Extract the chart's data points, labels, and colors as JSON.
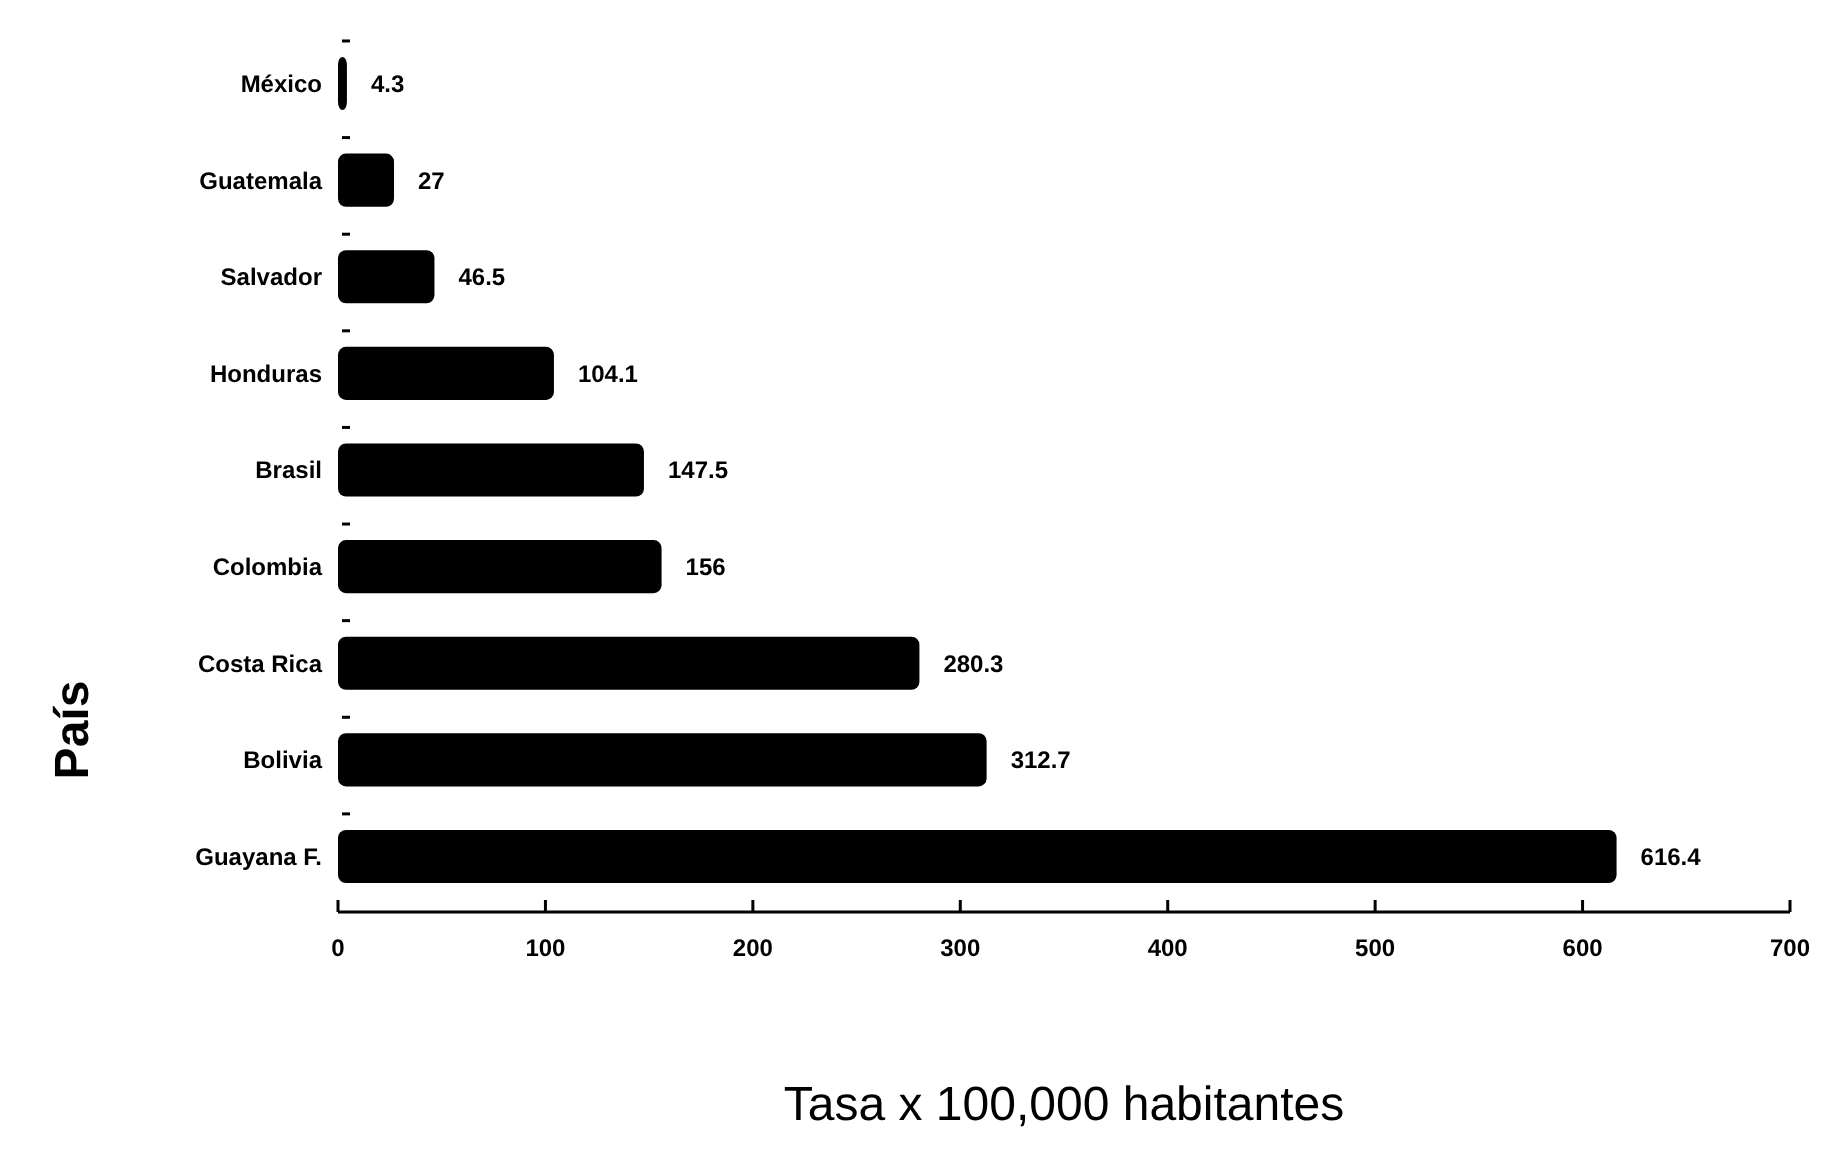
{
  "chart_data": {
    "type": "bar",
    "orientation": "horizontal",
    "xlabel": "Tasa x 100,000 habitantes",
    "ylabel": "País",
    "categories": [
      "México",
      "Guatemala",
      "Salvador",
      "Honduras",
      "Brasil",
      "Colombia",
      "Costa Rica",
      "Bolivia",
      "Guayana F."
    ],
    "values": [
      4.3,
      27,
      46.5,
      104.1,
      147.5,
      156,
      280.3,
      312.7,
      616.4
    ],
    "color": "#000000",
    "data_labels": true,
    "xlim": [
      0,
      700
    ],
    "xticks": [
      0,
      100,
      200,
      300,
      400,
      500,
      600,
      700
    ],
    "grid": false
  }
}
